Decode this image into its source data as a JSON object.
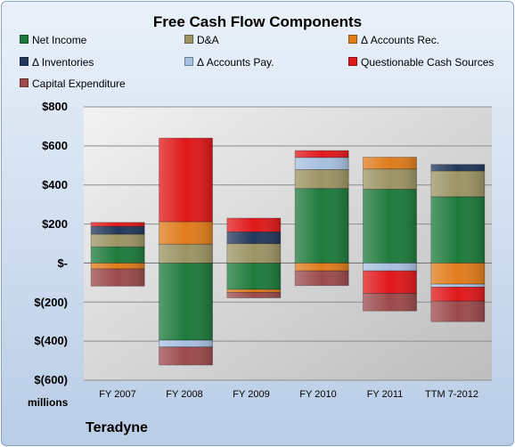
{
  "chart_data": {
    "type": "bar",
    "stacked": true,
    "title": "Free Cash Flow Components",
    "categories": [
      "FY 2007",
      "FY 2008",
      "FY 2009",
      "FY 2010",
      "FY 2011",
      "TTM 7-2012"
    ],
    "series": [
      {
        "name": "Net Income",
        "color": "#1e7a3c",
        "values": [
          83,
          -395,
          -135,
          382,
          378,
          340
        ]
      },
      {
        "name": "D&A",
        "color": "#9c9464",
        "values": [
          65,
          97,
          100,
          97,
          104,
          132
        ]
      },
      {
        "name": "Δ Accounts Rec.",
        "color": "#e07c1c",
        "values": [
          -30,
          115,
          -15,
          -40,
          60,
          -108
        ]
      },
      {
        "name": "Δ Inventories",
        "color": "#23385c",
        "values": [
          40,
          0,
          60,
          0,
          0,
          33
        ]
      },
      {
        "name": "Δ Accounts Pay.",
        "color": "#a8c0e0",
        "values": [
          0,
          -35,
          0,
          62,
          -40,
          -15
        ]
      },
      {
        "name": "Questionable Cash Sources",
        "color": "#e0191b",
        "values": [
          20,
          428,
          70,
          35,
          -115,
          -72
        ]
      },
      {
        "name": "Capital Expenditure",
        "color": "#9c4a4c",
        "values": [
          -88,
          -92,
          -28,
          -75,
          -90,
          -105
        ]
      }
    ],
    "ylim": [
      -600,
      800
    ],
    "yticks": [
      800,
      600,
      400,
      200,
      0,
      -200,
      -400,
      -600
    ],
    "ytick_labels": [
      "$800",
      "$600",
      "$400",
      "$200",
      "$-",
      "$(200)",
      "$(400)",
      "$(600)"
    ],
    "units_label": "millions",
    "company": "Teradyne",
    "grid": true,
    "legend_position": "top"
  }
}
